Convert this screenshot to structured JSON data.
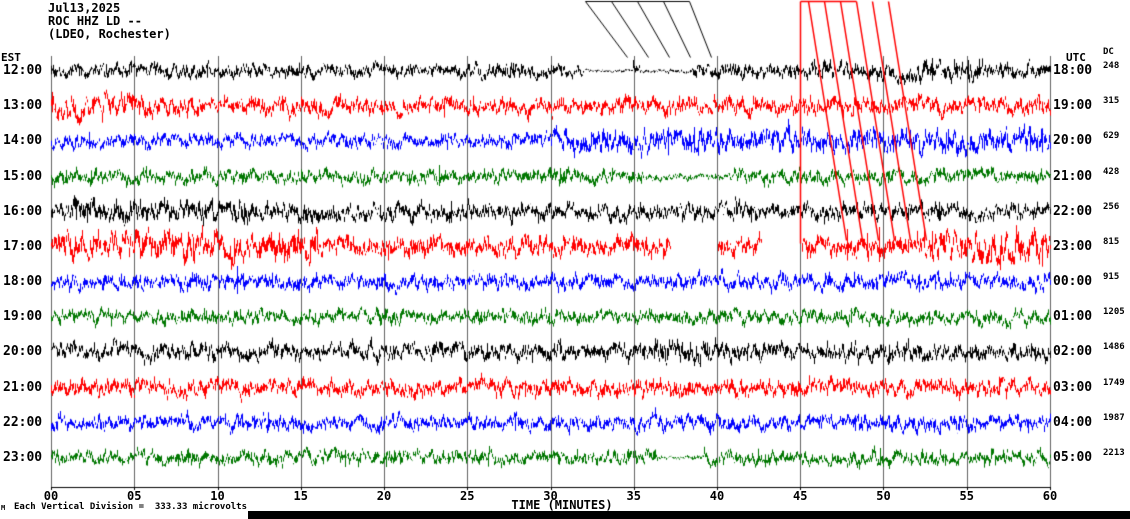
{
  "chart_data": {
    "type": "line",
    "kind": "seismogram-helicorder",
    "date": "Jul13,2025",
    "title": "ROC HHZ LD --",
    "subtitle": "(LDEO, Rochester)",
    "xlabel": "TIME (MINUTES)",
    "x_ticks": [
      "00",
      "05",
      "10",
      "15",
      "20",
      "25",
      "30",
      "35",
      "40",
      "45",
      "50",
      "55",
      "60"
    ],
    "x_range_minutes": [
      0,
      60
    ],
    "left_axis_label": "EST",
    "right_axis_label": "UTC",
    "right_secondary_label": "DC",
    "scale_note": "Each Vertical Division =  333.33 microvolts",
    "footer_mark": "M",
    "grid_color": "#606060",
    "trace_colors": [
      "#000000",
      "#ff0000",
      "#0000ff",
      "#007700"
    ],
    "rows": [
      {
        "est": "12:00",
        "utc": "18:00",
        "dc": "248",
        "color": "#000000",
        "amp": 5,
        "env": [
          {
            "from": 32,
            "to": 34.9,
            "mul": 0.22
          },
          {
            "from": 35.4,
            "to": 38.4,
            "mul": 0.3
          },
          {
            "from": 44,
            "to": 56,
            "mul": 1.35
          }
        ],
        "spikes": [
          {
            "x": 52.9,
            "h": 13
          },
          {
            "x": 55.1,
            "h": 11
          }
        ]
      },
      {
        "est": "13:00",
        "utc": "19:00",
        "dc": "315",
        "color": "#ff0000",
        "amp": 6,
        "env": [
          {
            "from": 0,
            "to": 6,
            "mul": 1.45
          }
        ]
      },
      {
        "est": "14:00",
        "utc": "20:00",
        "dc": "629",
        "color": "#0000ff",
        "amp": 5,
        "env": [
          {
            "from": 30,
            "to": 60,
            "mul": 1.6
          }
        ]
      },
      {
        "est": "15:00",
        "utc": "21:00",
        "dc": "428",
        "color": "#007700",
        "amp": 5,
        "env": [
          {
            "from": 35.5,
            "to": 41,
            "mul": 0.5
          }
        ],
        "spikes": [
          {
            "x": 23.3,
            "h": 12
          },
          {
            "x": 30.6,
            "h": 9
          }
        ]
      },
      {
        "est": "16:00",
        "utc": "22:00",
        "dc": "256",
        "color": "#000000",
        "amp": 6,
        "env": [
          {
            "from": 1,
            "to": 13,
            "mul": 1.3
          }
        ]
      },
      {
        "est": "17:00",
        "utc": "23:00",
        "dc": "815",
        "color": "#ff0000",
        "amp": 7,
        "env": [
          {
            "from": 0,
            "to": 16,
            "mul": 1.4
          },
          {
            "from": 52,
            "to": 60,
            "mul": 1.5
          }
        ],
        "gaps": [
          {
            "from": 37.2,
            "to": 40
          },
          {
            "from": 42.7,
            "to": 45.1
          }
        ],
        "spikes": [
          {
            "x": 47.8,
            "h": 18
          },
          {
            "x": 49.0,
            "h": 14
          },
          {
            "x": 49.7,
            "h": 20
          },
          {
            "x": 52.9,
            "h": 16
          }
        ]
      },
      {
        "est": "18:00",
        "utc": "00:00",
        "dc": "915",
        "color": "#0000ff",
        "amp": 5.5,
        "spikes": [
          {
            "x": 11.2,
            "h": 16
          }
        ]
      },
      {
        "est": "19:00",
        "utc": "01:00",
        "dc": "1205",
        "color": "#007700",
        "amp": 5
      },
      {
        "est": "20:00",
        "utc": "02:00",
        "dc": "1486",
        "color": "#000000",
        "amp": 6,
        "env": [
          {
            "from": 36,
            "to": 40.5,
            "mul": 1.35
          }
        ]
      },
      {
        "est": "21:00",
        "utc": "03:00",
        "dc": "1749",
        "color": "#ff0000",
        "amp": 6
      },
      {
        "est": "22:00",
        "utc": "04:00",
        "dc": "1987",
        "color": "#0000ff",
        "amp": 5.5
      },
      {
        "est": "23:00",
        "utc": "05:00",
        "dc": "2213",
        "color": "#007700",
        "amp": 5,
        "env": [
          {
            "from": 36.4,
            "to": 39.2,
            "mul": 0.3
          }
        ],
        "spikes": [
          {
            "x": 49.8,
            "h": 10
          }
        ]
      }
    ],
    "event_markers": {
      "black_lines": [
        [
          585,
          1,
          689,
          1
        ],
        [
          585,
          1,
          627,
          57
        ],
        [
          611,
          1,
          648,
          57
        ],
        [
          637,
          1,
          669,
          57
        ],
        [
          663,
          1,
          690,
          57
        ],
        [
          689,
          1,
          711,
          57
        ]
      ],
      "red_lines": [
        [
          800,
          1,
          800,
          243
        ],
        [
          800,
          1,
          856,
          1
        ],
        [
          808,
          1,
          846,
          240
        ],
        [
          824,
          1,
          862,
          240
        ],
        [
          840,
          1,
          878,
          240
        ],
        [
          856,
          1,
          894,
          240
        ],
        [
          872,
          1,
          910,
          240
        ],
        [
          888,
          1,
          926,
          240
        ]
      ]
    }
  }
}
